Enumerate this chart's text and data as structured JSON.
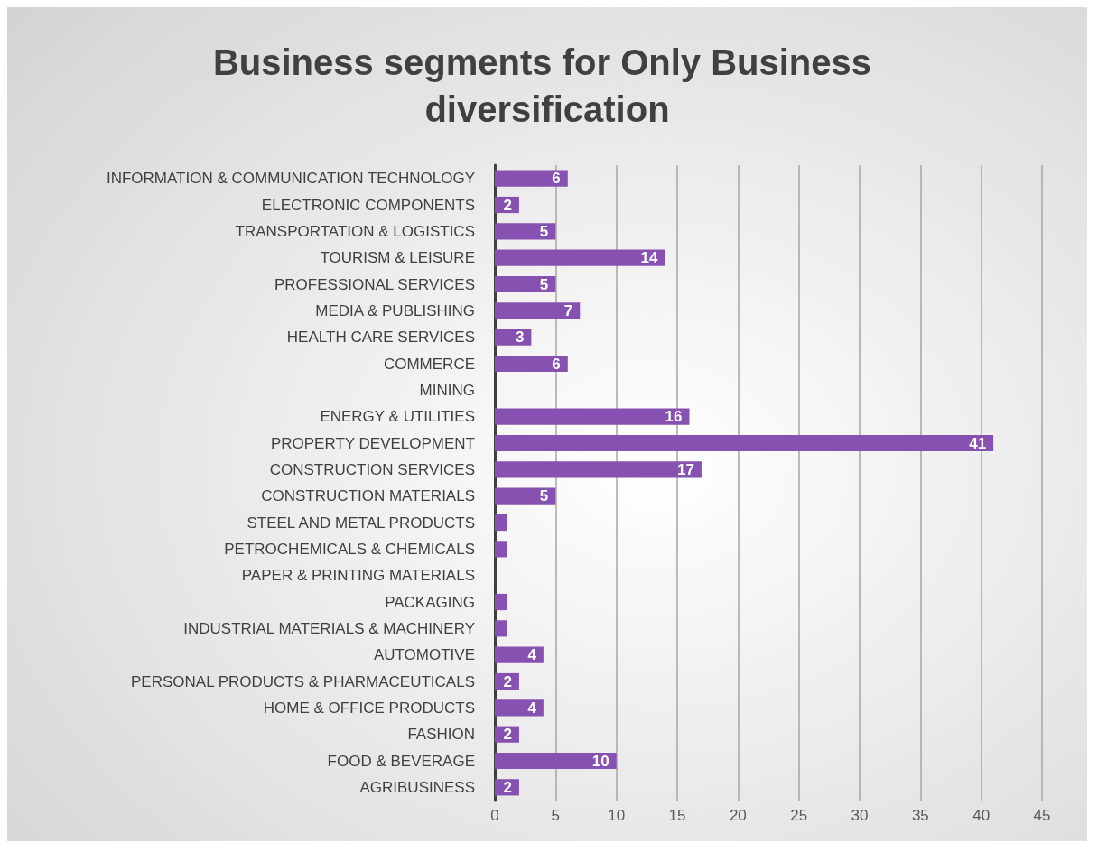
{
  "chart_data": {
    "type": "bar",
    "orientation": "horizontal",
    "title": "Business segments for Only Business diversification",
    "categories": [
      "INFORMATION & COMMUNICATION TECHNOLOGY",
      "ELECTRONIC COMPONENTS",
      "TRANSPORTATION & LOGISTICS",
      "TOURISM & LEISURE",
      "PROFESSIONAL SERVICES",
      "MEDIA & PUBLISHING",
      "HEALTH CARE SERVICES",
      "COMMERCE",
      "MINING",
      "ENERGY & UTILITIES",
      "PROPERTY DEVELOPMENT",
      "CONSTRUCTION SERVICES",
      "CONSTRUCTION MATERIALS",
      "STEEL AND METAL PRODUCTS",
      "PETROCHEMICALS & CHEMICALS",
      "PAPER & PRINTING MATERIALS",
      "PACKAGING",
      "INDUSTRIAL MATERIALS & MACHINERY",
      "AUTOMOTIVE",
      "PERSONAL PRODUCTS & PHARMACEUTICALS",
      "HOME & OFFICE PRODUCTS",
      "FASHION",
      "FOOD & BEVERAGE",
      "AGRIBUSINESS"
    ],
    "values": [
      6,
      2,
      5,
      14,
      5,
      7,
      3,
      6,
      0,
      16,
      41,
      17,
      5,
      1,
      1,
      0,
      1,
      1,
      4,
      2,
      4,
      2,
      10,
      2
    ],
    "value_labels": [
      "6",
      "2",
      "5",
      "14",
      "5",
      "7",
      "3",
      "6",
      null,
      "16",
      "41",
      "17",
      "5",
      null,
      null,
      null,
      null,
      null,
      "4",
      "2",
      "4",
      "2",
      "10",
      "2"
    ],
    "color": "#8651b0",
    "xlim": [
      0,
      45
    ],
    "xticks": [
      0,
      5,
      10,
      15,
      20,
      25,
      30,
      35,
      40,
      45
    ],
    "grid": "x"
  }
}
